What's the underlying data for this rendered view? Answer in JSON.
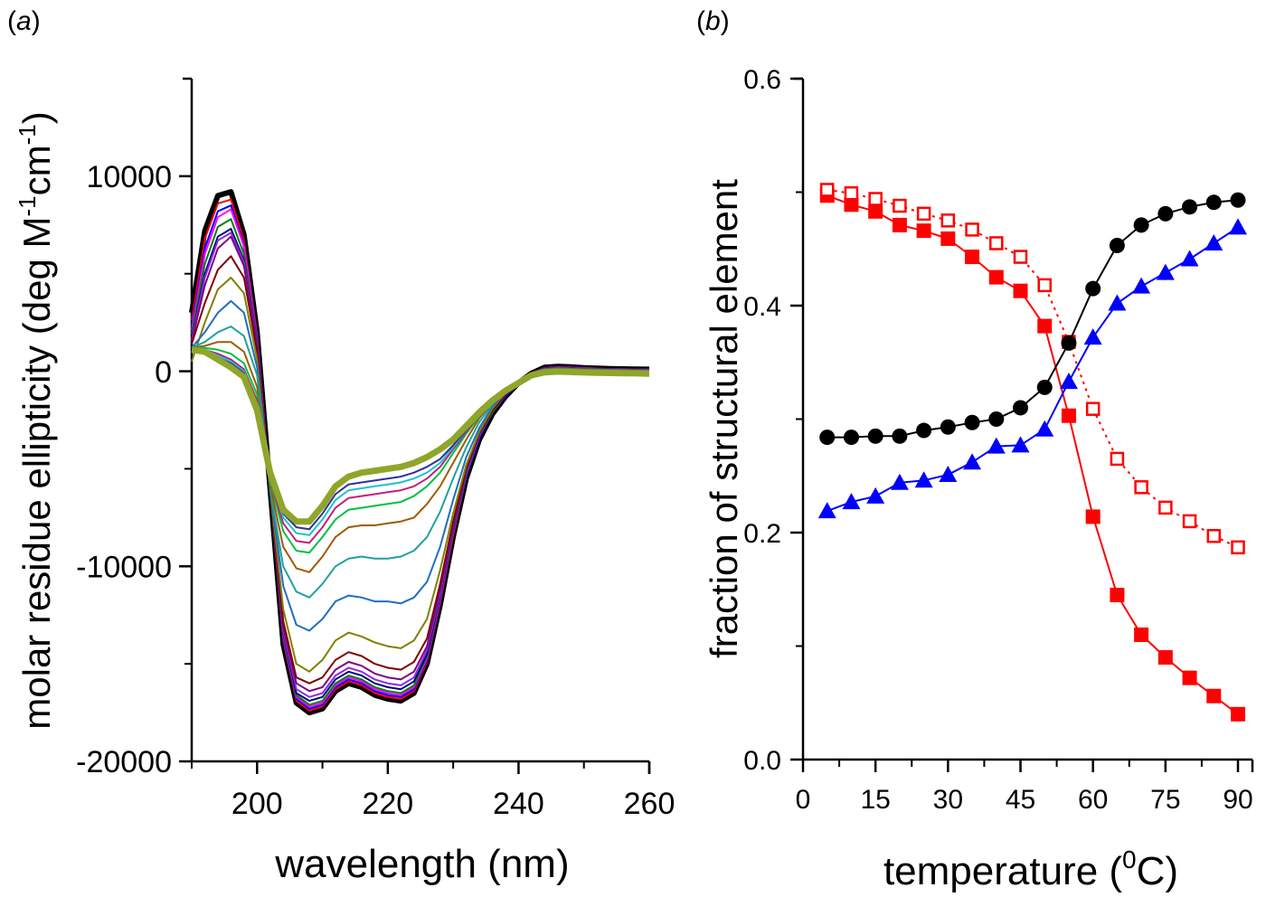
{
  "chart_data": [
    {
      "panel_label": "(a)",
      "type": "line",
      "title": "",
      "xlabel": "wavelength (nm)",
      "ylabel": "molar residue ellipticity (deg M-1cm-1)",
      "ylabel_parts": {
        "main": "molar residue ellipticity (deg M",
        "sup1": "-1",
        "mid": "cm",
        "sup2": "-1",
        "end": ")"
      },
      "xlim": [
        190,
        260
      ],
      "ylim": [
        -20000,
        15000
      ],
      "x_ticks": [
        200,
        220,
        240,
        260
      ],
      "x_tick_labels": [
        "200",
        "220",
        "240",
        "260"
      ],
      "y_ticks": [
        -20000,
        -10000,
        0,
        10000
      ],
      "y_tick_labels": [
        "-20000",
        "-10000",
        "0",
        "10000"
      ],
      "grid": false,
      "legend": "none",
      "x": [
        190,
        192,
        194,
        196,
        198,
        200,
        202,
        204,
        206,
        208,
        210,
        212,
        214,
        216,
        218,
        220,
        222,
        224,
        226,
        228,
        230,
        232,
        234,
        236,
        238,
        240,
        242,
        244,
        246,
        248,
        250,
        252,
        254,
        256,
        258,
        260
      ],
      "series": [
        {
          "name": "spectrum-01",
          "color": "#000000",
          "values": [
            3000,
            7200,
            9000,
            9200,
            7000,
            2000,
            -6000,
            -14000,
            -17000,
            -17500,
            -17300,
            -16400,
            -16000,
            -16200,
            -16600,
            -16800,
            -16900,
            -16500,
            -15000,
            -12000,
            -8500,
            -5500,
            -3500,
            -2200,
            -1300,
            -600,
            -100,
            200,
            250,
            220,
            180,
            150,
            130,
            120,
            110,
            100
          ]
        },
        {
          "name": "spectrum-02",
          "color": "#ff0000",
          "values": [
            2600,
            6800,
            8600,
            8800,
            6700,
            1900,
            -6000,
            -13800,
            -16900,
            -17400,
            -17200,
            -16300,
            -15900,
            -16100,
            -16500,
            -16700,
            -16800,
            -16400,
            -14900,
            -11900,
            -8400,
            -5400,
            -3400,
            -2100,
            -1300,
            -600,
            -100,
            180,
            230,
            200,
            170,
            140,
            120,
            110,
            100,
            90
          ]
        },
        {
          "name": "spectrum-03",
          "color": "#0000ff",
          "values": [
            2300,
            6300,
            8200,
            8500,
            6500,
            1800,
            -6000,
            -13700,
            -16800,
            -17300,
            -17100,
            -16200,
            -15800,
            -16000,
            -16400,
            -16600,
            -16700,
            -16300,
            -14800,
            -11800,
            -8300,
            -5400,
            -3400,
            -2100,
            -1300,
            -600,
            -100,
            170,
            220,
            190,
            160,
            130,
            110,
            100,
            90,
            80
          ]
        },
        {
          "name": "spectrum-04",
          "color": "#ff00ff",
          "values": [
            2100,
            6000,
            7900,
            8300,
            6400,
            1700,
            -6000,
            -13600,
            -16700,
            -17200,
            -17000,
            -16100,
            -15700,
            -15900,
            -16300,
            -16500,
            -16600,
            -16200,
            -14700,
            -11700,
            -8300,
            -5300,
            -3300,
            -2100,
            -1200,
            -600,
            -100,
            160,
            210,
            180,
            150,
            130,
            110,
            100,
            90,
            80
          ]
        },
        {
          "name": "spectrum-05",
          "color": "#008000",
          "values": [
            1900,
            5500,
            7400,
            7800,
            6000,
            1600,
            -6000,
            -13500,
            -16600,
            -17100,
            -16900,
            -16000,
            -15600,
            -15800,
            -16200,
            -16400,
            -16500,
            -16100,
            -14600,
            -11600,
            -8200,
            -5300,
            -3300,
            -2100,
            -1200,
            -600,
            -100,
            150,
            200,
            170,
            140,
            120,
            100,
            90,
            80,
            70
          ]
        },
        {
          "name": "spectrum-06",
          "color": "#000080",
          "values": [
            1700,
            5000,
            6900,
            7300,
            5700,
            1500,
            -6000,
            -13400,
            -16500,
            -16900,
            -16700,
            -15800,
            -15400,
            -15600,
            -16000,
            -16200,
            -16300,
            -15900,
            -14500,
            -11500,
            -8100,
            -5200,
            -3300,
            -2000,
            -1200,
            -600,
            -100,
            150,
            190,
            160,
            130,
            110,
            100,
            90,
            80,
            70
          ]
        },
        {
          "name": "spectrum-07",
          "color": "#8a2be2",
          "values": [
            1600,
            4800,
            6700,
            7100,
            5600,
            1400,
            -6000,
            -13300,
            -16300,
            -16700,
            -16500,
            -15600,
            -15200,
            -15400,
            -15800,
            -16000,
            -16100,
            -15700,
            -14300,
            -11400,
            -8000,
            -5200,
            -3300,
            -2000,
            -1200,
            -600,
            -100,
            140,
            180,
            150,
            130,
            110,
            90,
            80,
            70,
            60
          ]
        },
        {
          "name": "spectrum-08",
          "color": "#800080",
          "values": [
            1500,
            4400,
            6300,
            6900,
            5400,
            1300,
            -6000,
            -13100,
            -16000,
            -16400,
            -16200,
            -15300,
            -14900,
            -15100,
            -15500,
            -15700,
            -15800,
            -15400,
            -14100,
            -11200,
            -7900,
            -5100,
            -3200,
            -2000,
            -1200,
            -600,
            -100,
            130,
            170,
            140,
            120,
            100,
            90,
            80,
            70,
            60
          ]
        },
        {
          "name": "spectrum-09",
          "color": "#800000",
          "values": [
            1400,
            3500,
            5200,
            5900,
            4800,
            1000,
            -6000,
            -12800,
            -15700,
            -16000,
            -15700,
            -14800,
            -14400,
            -14600,
            -15000,
            -15200,
            -15300,
            -14900,
            -13700,
            -10900,
            -7700,
            -5000,
            -3200,
            -2000,
            -1200,
            -600,
            -100,
            120,
            160,
            130,
            110,
            90,
            80,
            70,
            60,
            50
          ]
        },
        {
          "name": "spectrum-10",
          "color": "#808000",
          "values": [
            500,
            2500,
            4200,
            4800,
            4000,
            600,
            -6000,
            -12200,
            -15000,
            -15400,
            -14800,
            -13800,
            -13400,
            -13600,
            -13900,
            -14100,
            -14200,
            -13800,
            -12700,
            -10200,
            -7300,
            -4800,
            -3100,
            -1900,
            -1100,
            -600,
            -100,
            110,
            150,
            120,
            100,
            80,
            70,
            60,
            50,
            40
          ]
        },
        {
          "name": "spectrum-11",
          "color": "#1f6fbf",
          "values": [
            1200,
            2000,
            3000,
            3600,
            3000,
            200,
            -6000,
            -11000,
            -13000,
            -13300,
            -12700,
            -11800,
            -11500,
            -11600,
            -11800,
            -11800,
            -11900,
            -11600,
            -10800,
            -9000,
            -6600,
            -4400,
            -2900,
            -1800,
            -1100,
            -600,
            -100,
            100,
            140,
            110,
            90,
            80,
            70,
            60,
            50,
            40
          ]
        },
        {
          "name": "spectrum-12",
          "color": "#20a0a0",
          "values": [
            1200,
            1500,
            2000,
            2300,
            1800,
            -200,
            -6000,
            -10000,
            -11300,
            -11600,
            -10900,
            -10000,
            -9600,
            -9500,
            -9600,
            -9600,
            -9500,
            -9200,
            -8500,
            -7200,
            -5500,
            -3900,
            -2600,
            -1700,
            -1000,
            -600,
            -100,
            90,
            130,
            100,
            90,
            70,
            60,
            50,
            40,
            30
          ]
        },
        {
          "name": "spectrum-13",
          "color": "#a05a00",
          "values": [
            1200,
            1300,
            1500,
            1500,
            1000,
            -800,
            -5800,
            -9000,
            -10100,
            -10300,
            -9500,
            -8500,
            -8000,
            -7900,
            -7900,
            -7800,
            -7700,
            -7500,
            -6800,
            -5900,
            -4700,
            -3500,
            -2400,
            -1600,
            -1000,
            -600,
            -100,
            80,
            120,
            90,
            80,
            60,
            50,
            40,
            30,
            20
          ]
        },
        {
          "name": "spectrum-14",
          "color": "#00c040",
          "values": [
            1200,
            1200,
            1100,
            900,
            400,
            -1200,
            -5600,
            -8200,
            -9200,
            -9300,
            -8500,
            -7600,
            -7100,
            -7000,
            -6900,
            -6800,
            -6700,
            -6400,
            -5900,
            -5200,
            -4200,
            -3200,
            -2300,
            -1500,
            -1000,
            -600,
            -100,
            70,
            110,
            80,
            70,
            50,
            40,
            30,
            20,
            10
          ]
        },
        {
          "name": "spectrum-15",
          "color": "#c0207a",
          "values": [
            1200,
            1100,
            900,
            600,
            100,
            -1500,
            -5500,
            -7800,
            -8700,
            -8800,
            -8000,
            -7000,
            -6500,
            -6400,
            -6300,
            -6200,
            -6100,
            -5900,
            -5500,
            -4900,
            -4000,
            -3100,
            -2200,
            -1500,
            -1000,
            -600,
            -100,
            60,
            100,
            70,
            60,
            40,
            30,
            20,
            10,
            0
          ]
        },
        {
          "name": "spectrum-16",
          "color": "#20c0d0",
          "values": [
            1200,
            1100,
            800,
            500,
            0,
            -1700,
            -5400,
            -7500,
            -8300,
            -8400,
            -7600,
            -6600,
            -6100,
            -6000,
            -5900,
            -5800,
            -5700,
            -5500,
            -5200,
            -4700,
            -3900,
            -3000,
            -2200,
            -1500,
            -1000,
            -600,
            -100,
            50,
            90,
            60,
            50,
            30,
            20,
            10,
            0,
            -10
          ]
        },
        {
          "name": "spectrum-17",
          "color": "#30309a",
          "values": [
            1200,
            1100,
            700,
            400,
            -100,
            -1800,
            -5300,
            -7300,
            -8000,
            -8100,
            -7300,
            -6300,
            -5800,
            -5700,
            -5600,
            -5500,
            -5400,
            -5200,
            -4900,
            -4500,
            -3800,
            -3000,
            -2100,
            -1500,
            -1000,
            -600,
            -100,
            40,
            80,
            50,
            40,
            20,
            10,
            0,
            -10,
            -20
          ]
        },
        {
          "name": "spectrum-18-final",
          "color": "#8fa62a",
          "thick": true,
          "values": [
            1100,
            1000,
            600,
            200,
            -300,
            -2000,
            -5200,
            -7100,
            -7700,
            -7700,
            -6900,
            -5900,
            -5400,
            -5200,
            -5100,
            -5000,
            -4900,
            -4700,
            -4400,
            -4000,
            -3500,
            -2800,
            -2100,
            -1500,
            -1000,
            -600,
            -200,
            -50,
            -20,
            -40,
            -60,
            -80,
            -90,
            -100,
            -110,
            -120
          ]
        }
      ]
    },
    {
      "panel_label": "(b)",
      "type": "line",
      "title": "",
      "xlabel": "temperature (0C)",
      "xlabel_parts": {
        "main": "temperature (",
        "sup": "0",
        "end": "C)"
      },
      "ylabel": "fraction of structural element",
      "xlim": [
        0,
        93
      ],
      "ylim": [
        0.0,
        0.6
      ],
      "x_ticks": [
        0,
        15,
        30,
        45,
        60,
        75,
        90
      ],
      "x_tick_labels": [
        "0",
        "15",
        "30",
        "45",
        "60",
        "75",
        "90"
      ],
      "y_ticks": [
        0.0,
        0.2,
        0.4,
        0.6
      ],
      "y_tick_labels": [
        "0.0",
        "0.2",
        "0.4",
        "0.6"
      ],
      "grid": false,
      "legend": "none",
      "x": [
        5,
        10,
        15,
        20,
        25,
        30,
        35,
        40,
        45,
        50,
        55,
        60,
        65,
        70,
        75,
        80,
        85,
        90
      ],
      "series": [
        {
          "name": "filled-red-squares",
          "marker": "square-filled",
          "line": "solid",
          "color": "#ff0000",
          "values": [
            0.497,
            0.489,
            0.483,
            0.471,
            0.466,
            0.459,
            0.443,
            0.425,
            0.413,
            0.382,
            0.303,
            0.214,
            0.145,
            0.11,
            0.09,
            0.072,
            0.056,
            0.04
          ]
        },
        {
          "name": "open-red-squares",
          "marker": "square-open",
          "line": "dotted",
          "color": "#ff0000",
          "values": [
            0.502,
            0.499,
            0.494,
            0.488,
            0.481,
            0.475,
            0.467,
            0.455,
            0.443,
            0.418,
            0.368,
            0.309,
            0.265,
            0.24,
            0.222,
            0.21,
            0.197,
            0.187
          ]
        },
        {
          "name": "black-circles",
          "marker": "circle-filled",
          "line": "solid",
          "color": "#000000",
          "values": [
            0.284,
            0.284,
            0.285,
            0.285,
            0.29,
            0.293,
            0.297,
            0.3,
            0.31,
            0.328,
            0.367,
            0.415,
            0.453,
            0.471,
            0.481,
            0.487,
            0.491,
            0.493
          ]
        },
        {
          "name": "blue-triangles",
          "marker": "triangle-filled",
          "line": "solid",
          "color": "#0000ff",
          "values": [
            0.219,
            0.227,
            0.232,
            0.244,
            0.246,
            0.251,
            0.262,
            0.276,
            0.277,
            0.291,
            0.333,
            0.372,
            0.402,
            0.417,
            0.429,
            0.441,
            0.455,
            0.469
          ]
        }
      ]
    }
  ]
}
